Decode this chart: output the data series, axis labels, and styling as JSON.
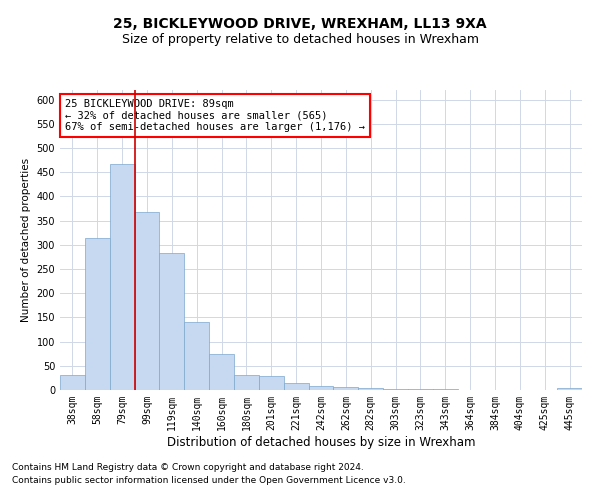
{
  "title1": "25, BICKLEYWOOD DRIVE, WREXHAM, LL13 9XA",
  "title2": "Size of property relative to detached houses in Wrexham",
  "xlabel": "Distribution of detached houses by size in Wrexham",
  "ylabel": "Number of detached properties",
  "categories": [
    "38sqm",
    "58sqm",
    "79sqm",
    "99sqm",
    "119sqm",
    "140sqm",
    "160sqm",
    "180sqm",
    "201sqm",
    "221sqm",
    "242sqm",
    "262sqm",
    "282sqm",
    "303sqm",
    "323sqm",
    "343sqm",
    "364sqm",
    "384sqm",
    "404sqm",
    "425sqm",
    "445sqm"
  ],
  "values": [
    31,
    315,
    468,
    367,
    283,
    141,
    75,
    31,
    28,
    14,
    8,
    7,
    5,
    3,
    2,
    3,
    1,
    0,
    0,
    0,
    4
  ],
  "bar_color": "#c6d9f0",
  "bar_edge_color": "#7BA7CC",
  "grid_color": "#d0d8e8",
  "annotation_text": "25 BICKLEYWOOD DRIVE: 89sqm\n← 32% of detached houses are smaller (565)\n67% of semi-detached houses are larger (1,176) →",
  "vline_x": 2.5,
  "vline_color": "#cc0000",
  "ylim": [
    0,
    620
  ],
  "yticks": [
    0,
    50,
    100,
    150,
    200,
    250,
    300,
    350,
    400,
    450,
    500,
    550,
    600
  ],
  "footnote1": "Contains HM Land Registry data © Crown copyright and database right 2024.",
  "footnote2": "Contains public sector information licensed under the Open Government Licence v3.0.",
  "title1_fontsize": 10,
  "title2_fontsize": 9,
  "xlabel_fontsize": 8.5,
  "ylabel_fontsize": 7.5,
  "tick_fontsize": 7,
  "annotation_fontsize": 7.5,
  "footnote_fontsize": 6.5
}
